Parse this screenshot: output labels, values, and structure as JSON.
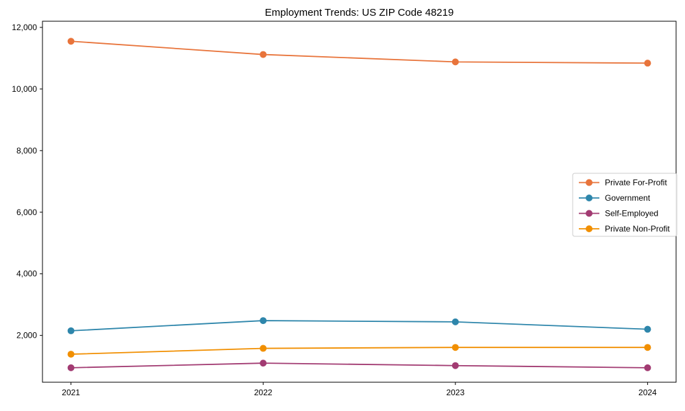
{
  "chart_data": {
    "type": "line",
    "title": "Employment Trends: US ZIP Code 48219",
    "categories": [
      "2021",
      "2022",
      "2023",
      "2024"
    ],
    "series": [
      {
        "name": "Private For-Profit",
        "color": "#E8743B",
        "values": [
          11550,
          11120,
          10880,
          10840
        ]
      },
      {
        "name": "Government",
        "color": "#2E86AB",
        "values": [
          2150,
          2480,
          2440,
          2200
        ]
      },
      {
        "name": "Self-Employed",
        "color": "#A23B72",
        "values": [
          950,
          1100,
          1020,
          950
        ]
      },
      {
        "name": "Private Non-Profit",
        "color": "#F18F01",
        "values": [
          1390,
          1580,
          1610,
          1610
        ]
      }
    ],
    "xlabel": "",
    "ylabel": "",
    "ylim": [
      480,
      12200
    ],
    "yticks": [
      2000,
      4000,
      6000,
      8000,
      10000,
      12000
    ],
    "ytick_labels": [
      "2,000",
      "4,000",
      "6,000",
      "8,000",
      "10,000",
      "12,000"
    ],
    "grid": false,
    "legend_position": "center-right",
    "marker": "circle",
    "axis_color": "#000000",
    "legend_border_color": "#cccccc",
    "background": "#ffffff"
  }
}
